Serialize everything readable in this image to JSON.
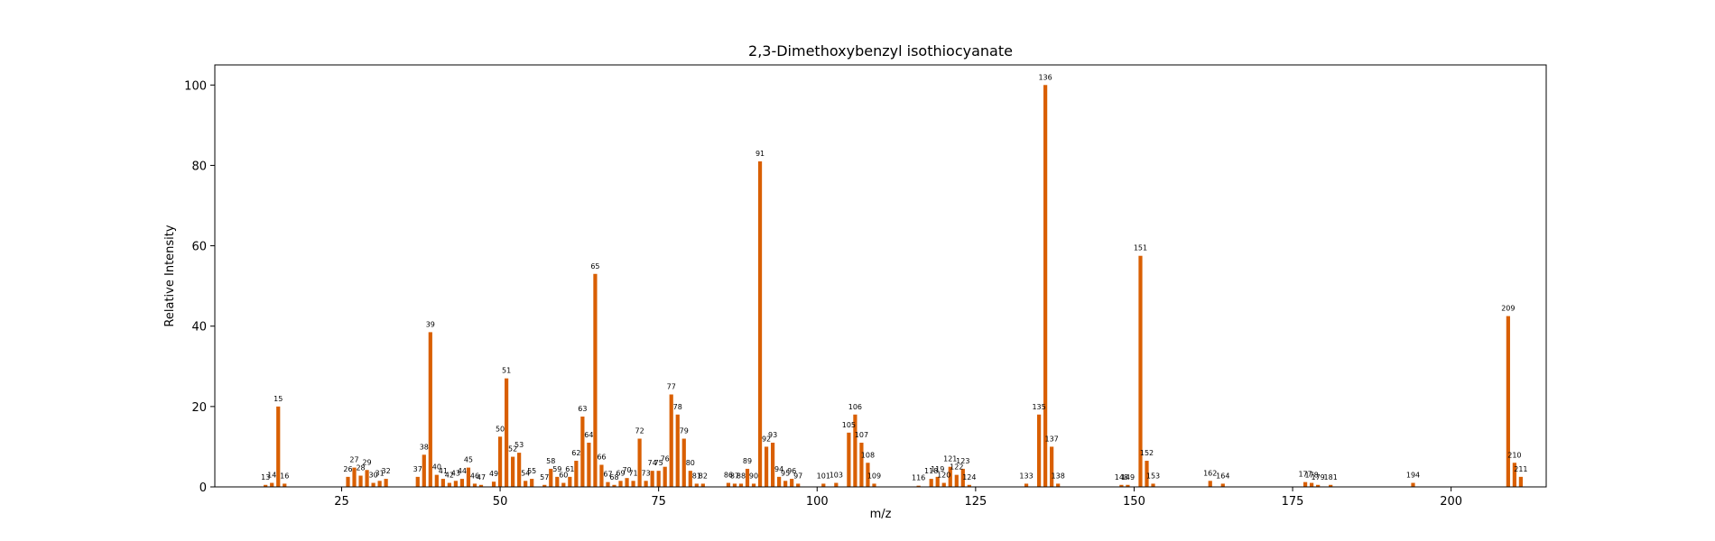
{
  "chart_data": {
    "type": "bar",
    "title": "2,3-Dimethoxybenzyl isothiocyanate",
    "xlabel": "m/z",
    "ylabel": "Relative Intensity",
    "xlim": [
      5,
      215
    ],
    "ylim": [
      0,
      105
    ],
    "xticks": [
      25,
      50,
      75,
      100,
      125,
      150,
      175,
      200
    ],
    "yticks": [
      0,
      20,
      40,
      60,
      80,
      100
    ],
    "grid": false,
    "legend": "none",
    "bar_color": "#d95f02",
    "peaks": [
      {
        "x": 13,
        "y": 0.5
      },
      {
        "x": 14,
        "y": 1.0
      },
      {
        "x": 15,
        "y": 20.0
      },
      {
        "x": 16,
        "y": 0.8
      },
      {
        "x": 26,
        "y": 2.5
      },
      {
        "x": 27,
        "y": 4.8
      },
      {
        "x": 28,
        "y": 2.8
      },
      {
        "x": 29,
        "y": 4.2
      },
      {
        "x": 30,
        "y": 1.0
      },
      {
        "x": 31,
        "y": 1.5
      },
      {
        "x": 32,
        "y": 2.0
      },
      {
        "x": 37,
        "y": 2.5
      },
      {
        "x": 38,
        "y": 8.0
      },
      {
        "x": 39,
        "y": 38.5
      },
      {
        "x": 40,
        "y": 3.0
      },
      {
        "x": 41,
        "y": 2.0
      },
      {
        "x": 42,
        "y": 1.0
      },
      {
        "x": 43,
        "y": 1.5
      },
      {
        "x": 44,
        "y": 2.0
      },
      {
        "x": 45,
        "y": 4.8
      },
      {
        "x": 46,
        "y": 0.8
      },
      {
        "x": 47,
        "y": 0.5
      },
      {
        "x": 49,
        "y": 1.3
      },
      {
        "x": 50,
        "y": 12.5
      },
      {
        "x": 51,
        "y": 27.0
      },
      {
        "x": 52,
        "y": 7.5
      },
      {
        "x": 53,
        "y": 8.5
      },
      {
        "x": 54,
        "y": 1.5
      },
      {
        "x": 55,
        "y": 2.0
      },
      {
        "x": 57,
        "y": 0.5
      },
      {
        "x": 58,
        "y": 4.5
      },
      {
        "x": 59,
        "y": 2.5
      },
      {
        "x": 60,
        "y": 1.0
      },
      {
        "x": 61,
        "y": 2.5
      },
      {
        "x": 62,
        "y": 6.5
      },
      {
        "x": 63,
        "y": 17.5
      },
      {
        "x": 64,
        "y": 11.0
      },
      {
        "x": 65,
        "y": 53.0
      },
      {
        "x": 66,
        "y": 5.5
      },
      {
        "x": 67,
        "y": 1.2
      },
      {
        "x": 68,
        "y": 0.5
      },
      {
        "x": 69,
        "y": 1.5
      },
      {
        "x": 70,
        "y": 2.2
      },
      {
        "x": 71,
        "y": 1.5
      },
      {
        "x": 72,
        "y": 12.0
      },
      {
        "x": 73,
        "y": 1.5
      },
      {
        "x": 74,
        "y": 4.0
      },
      {
        "x": 75,
        "y": 4.0
      },
      {
        "x": 76,
        "y": 5.0
      },
      {
        "x": 77,
        "y": 23.0
      },
      {
        "x": 78,
        "y": 18.0
      },
      {
        "x": 79,
        "y": 12.0
      },
      {
        "x": 80,
        "y": 4.0
      },
      {
        "x": 81,
        "y": 0.8
      },
      {
        "x": 82,
        "y": 0.8
      },
      {
        "x": 86,
        "y": 1.0
      },
      {
        "x": 87,
        "y": 0.8
      },
      {
        "x": 88,
        "y": 0.8
      },
      {
        "x": 89,
        "y": 4.5
      },
      {
        "x": 90,
        "y": 0.8
      },
      {
        "x": 91,
        "y": 81.0
      },
      {
        "x": 92,
        "y": 10.0
      },
      {
        "x": 93,
        "y": 11.0
      },
      {
        "x": 94,
        "y": 2.5
      },
      {
        "x": 95,
        "y": 1.5
      },
      {
        "x": 96,
        "y": 2.0
      },
      {
        "x": 97,
        "y": 0.8
      },
      {
        "x": 101,
        "y": 0.8
      },
      {
        "x": 103,
        "y": 1.0
      },
      {
        "x": 105,
        "y": 13.5
      },
      {
        "x": 106,
        "y": 18.0
      },
      {
        "x": 107,
        "y": 11.0
      },
      {
        "x": 108,
        "y": 6.0
      },
      {
        "x": 109,
        "y": 0.8
      },
      {
        "x": 116,
        "y": 0.3
      },
      {
        "x": 118,
        "y": 2.0
      },
      {
        "x": 119,
        "y": 2.5
      },
      {
        "x": 120,
        "y": 1.0
      },
      {
        "x": 121,
        "y": 5.0
      },
      {
        "x": 122,
        "y": 3.0
      },
      {
        "x": 123,
        "y": 4.5
      },
      {
        "x": 124,
        "y": 0.5
      },
      {
        "x": 133,
        "y": 0.8
      },
      {
        "x": 135,
        "y": 18.0
      },
      {
        "x": 136,
        "y": 100.0
      },
      {
        "x": 137,
        "y": 10.0
      },
      {
        "x": 138,
        "y": 0.8
      },
      {
        "x": 148,
        "y": 0.5
      },
      {
        "x": 149,
        "y": 0.5
      },
      {
        "x": 151,
        "y": 57.5
      },
      {
        "x": 152,
        "y": 6.5
      },
      {
        "x": 153,
        "y": 0.8
      },
      {
        "x": 162,
        "y": 1.5
      },
      {
        "x": 164,
        "y": 0.8
      },
      {
        "x": 177,
        "y": 1.2
      },
      {
        "x": 178,
        "y": 1.0
      },
      {
        "x": 179,
        "y": 0.5
      },
      {
        "x": 181,
        "y": 0.5
      },
      {
        "x": 194,
        "y": 1.0
      },
      {
        "x": 209,
        "y": 42.5
      },
      {
        "x": 210,
        "y": 6.0
      },
      {
        "x": 211,
        "y": 2.5
      }
    ]
  }
}
